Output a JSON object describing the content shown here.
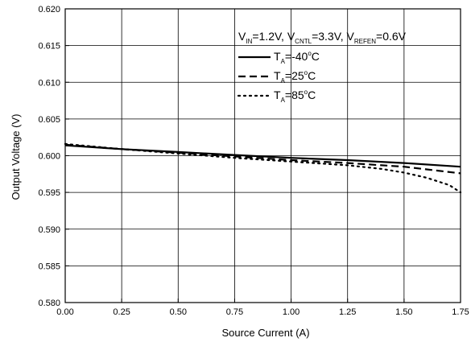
{
  "chart_data": {
    "type": "line",
    "xlabel": "Source Current (A)",
    "ylabel": "Output Voltage (V)",
    "xlim": [
      0,
      1.75
    ],
    "ylim": [
      0.58,
      0.62
    ],
    "xticks": [
      "0.00",
      "0.25",
      "0.50",
      "0.75",
      "1.00",
      "1.25",
      "1.50",
      "1.75"
    ],
    "yticks": [
      "0.580",
      "0.585",
      "0.590",
      "0.595",
      "0.600",
      "0.605",
      "0.610",
      "0.615",
      "0.620"
    ],
    "grid": true,
    "legend_position": "top-right",
    "conditions": {
      "parts": [
        {
          "main": "V",
          "sub": "IN",
          "rest": "=1.2V, "
        },
        {
          "main": "V",
          "sub": "CNTL",
          "rest": "=3.3V, "
        },
        {
          "main": "V",
          "sub": "REFEN",
          "rest": "=0.6V"
        }
      ]
    },
    "series": [
      {
        "name": "-40",
        "label_main": "T",
        "label_sub": "A",
        "label_eq": "=-40",
        "label_sup": "o",
        "label_unit": "C",
        "style": "solid",
        "x": [
          0.0,
          0.25,
          0.5,
          0.75,
          1.0,
          1.25,
          1.5,
          1.75
        ],
        "y": [
          0.6014,
          0.6009,
          0.6005,
          0.6001,
          0.5997,
          0.5994,
          0.599,
          0.5985
        ]
      },
      {
        "name": "25",
        "label_main": "T",
        "label_sub": "A",
        "label_eq": "=25",
        "label_sup": "o",
        "label_unit": "C",
        "style": "dashed",
        "x": [
          0.0,
          0.25,
          0.5,
          0.75,
          1.0,
          1.25,
          1.5,
          1.75
        ],
        "y": [
          0.6015,
          0.6009,
          0.6004,
          0.5999,
          0.5994,
          0.599,
          0.5985,
          0.5976
        ]
      },
      {
        "name": "85",
        "label_main": "T",
        "label_sub": "A",
        "label_eq": "=85",
        "label_sup": "o",
        "label_unit": "C",
        "style": "dotted",
        "x": [
          0.0,
          0.25,
          0.5,
          0.75,
          1.0,
          1.25,
          1.4,
          1.5,
          1.6,
          1.7,
          1.75
        ],
        "y": [
          0.6016,
          0.6009,
          0.6003,
          0.5997,
          0.5992,
          0.5987,
          0.5982,
          0.5977,
          0.597,
          0.596,
          0.595
        ]
      }
    ]
  }
}
